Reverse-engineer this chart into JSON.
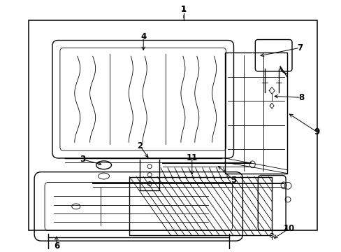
{
  "bg": "#ffffff",
  "lc": "#000000",
  "fig_w": 4.89,
  "fig_h": 3.6,
  "dpi": 100
}
